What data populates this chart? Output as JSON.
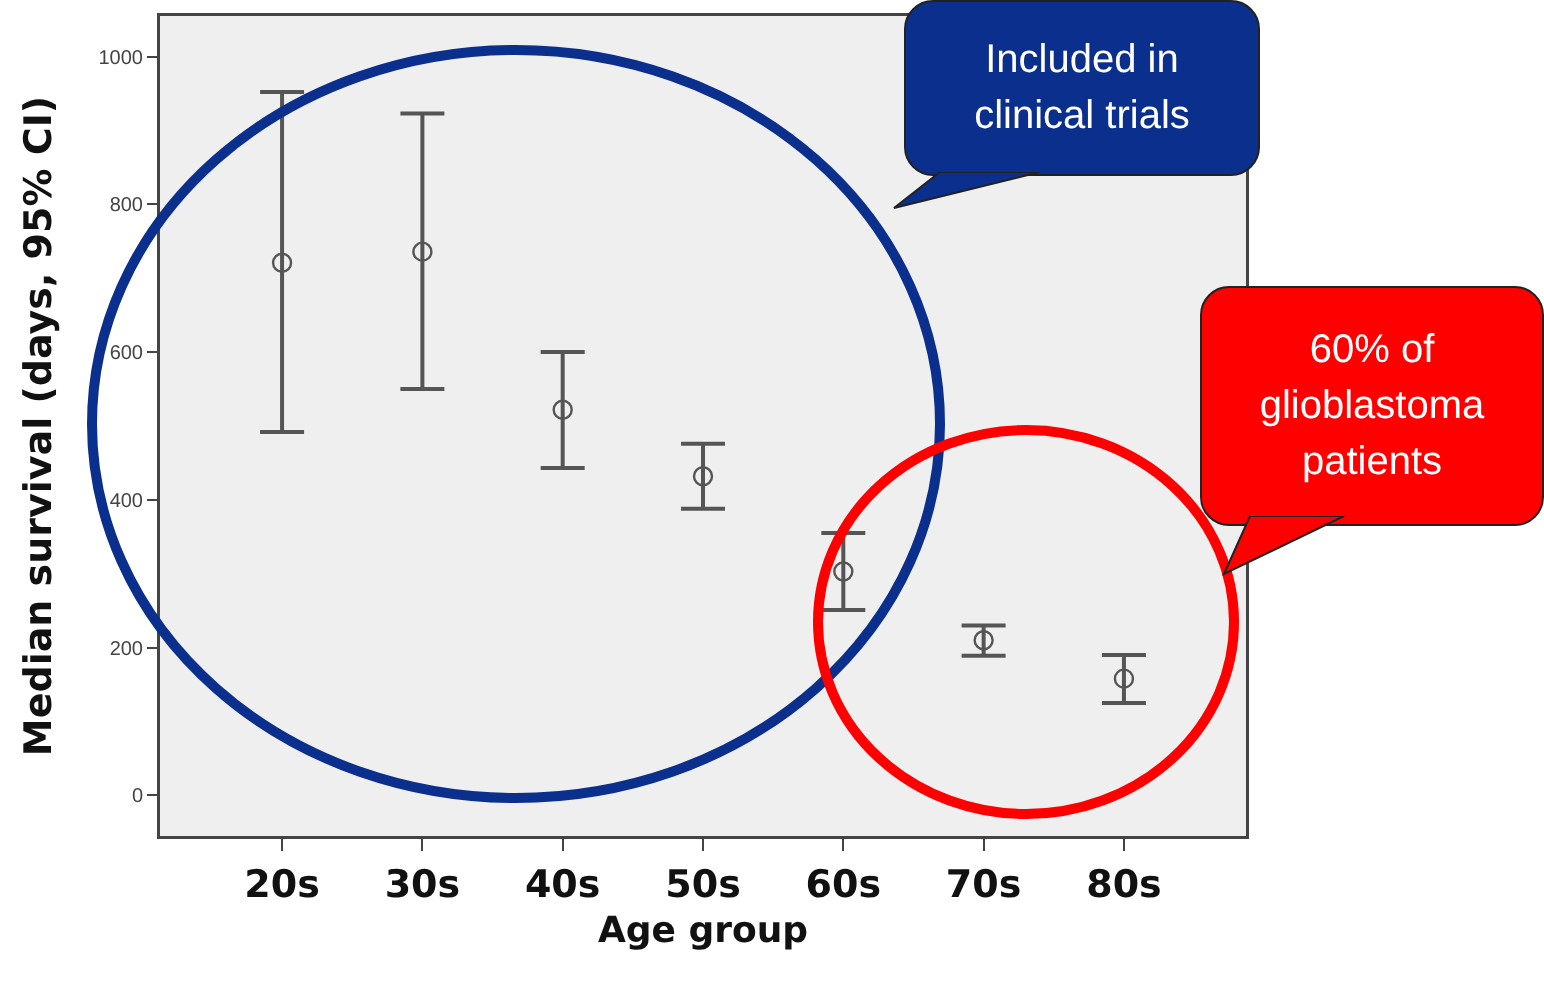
{
  "chart_data": {
    "type": "scatter",
    "xlabel": "Age group",
    "ylabel": "Median survival (days, 95% CI)",
    "categories": [
      "20s",
      "30s",
      "40s",
      "50s",
      "60s",
      "70s",
      "80s"
    ],
    "series": [
      {
        "color": "#555555",
        "values": [
          721,
          736,
          522,
          432,
          303,
          210,
          158
        ],
        "errors": [
          [
            492,
            952
          ],
          [
            550,
            923
          ],
          [
            443,
            600
          ],
          [
            388,
            476
          ],
          [
            251,
            355
          ],
          [
            189,
            230
          ],
          [
            125,
            190
          ]
        ]
      }
    ],
    "ylim": [
      -55,
      1055
    ],
    "yticks": [
      0,
      200,
      400,
      600,
      800,
      1000
    ],
    "marker": "circle",
    "grid": false,
    "annotations": [
      "Included in clinical trials",
      "60% of glioblastoma patients"
    ]
  }
}
